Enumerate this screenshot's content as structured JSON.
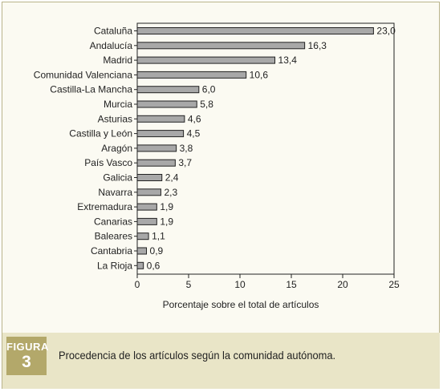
{
  "figure": {
    "badge_word": "FIGURA",
    "badge_number": "3",
    "caption": "Procedencia de los artículos según la comunidad autónoma."
  },
  "colors": {
    "bar_fill": "#a8a8a8",
    "bar_stroke": "#222222",
    "frame_border": "#b9b38a",
    "caption_band": "#e9e5c7",
    "badge": "#b3a86a"
  },
  "chart_data": {
    "type": "bar",
    "orientation": "horizontal",
    "categories": [
      "Cataluña",
      "Andalucía",
      "Madrid",
      "Comunidad Valenciana",
      "Castilla-La Mancha",
      "Murcia",
      "Asturias",
      "Castilla y León",
      "Aragón",
      "País Vasco",
      "Galicia",
      "Navarra",
      "Extremadura",
      "Canarias",
      "Baleares",
      "Cantabria",
      "La Rioja"
    ],
    "values": [
      23.0,
      16.3,
      13.4,
      10.6,
      6.0,
      5.8,
      4.6,
      4.5,
      3.8,
      3.7,
      2.4,
      2.3,
      1.9,
      1.9,
      1.1,
      0.9,
      0.6
    ],
    "value_labels": [
      "23,0",
      "16,3",
      "13,4",
      "10,6",
      "6,0",
      "5,8",
      "4,6",
      "4,5",
      "3,8",
      "3,7",
      "2,4",
      "2,3",
      "1,9",
      "1,9",
      "1,1",
      "0,9",
      "0,6"
    ],
    "xlabel": "Porcentaje sobre el total de artículos",
    "ylabel": "",
    "xlim": [
      0,
      25
    ],
    "xticks": [
      0,
      5,
      10,
      15,
      20,
      25
    ],
    "grid": false,
    "legend": "none"
  }
}
